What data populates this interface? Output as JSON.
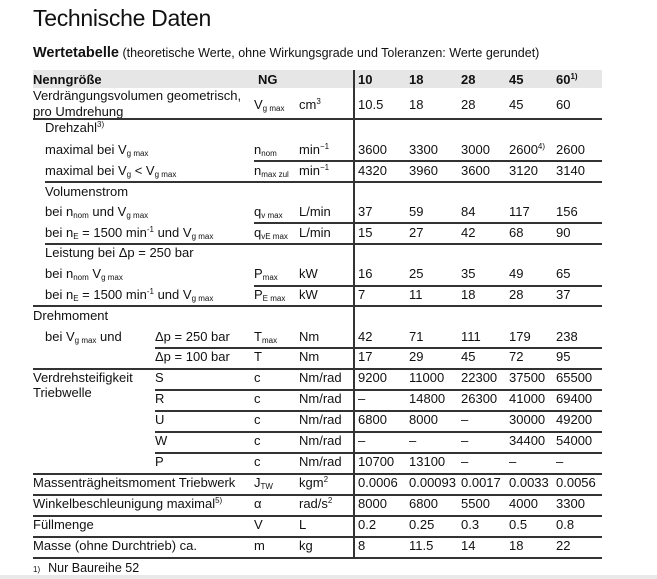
{
  "title": "Technische Daten",
  "subtitle": {
    "bold": "Wertetabelle",
    "rest": " (theoretische Werte, ohne Wirkungsgrade und Toleranzen: Werte gerundet)"
  },
  "header": {
    "label": "Nenngröße",
    "symbol": "NG",
    "sizes": [
      "10",
      "18",
      "28",
      "45",
      "60"
    ],
    "size_footnotes": [
      "",
      "",
      "",
      "",
      "1)"
    ]
  },
  "rows": [
    {
      "label": [
        [
          "Verdrängungsvolumen geometrisch,",
          ""
        ]
      ],
      "label2": [
        [
          "pro Umdrehung",
          ""
        ]
      ],
      "symbol": [
        [
          "V",
          ""
        ],
        [
          "g max",
          "sub"
        ]
      ],
      "unit": [
        [
          "cm",
          ""
        ],
        [
          "3",
          "sup"
        ]
      ],
      "values": [
        "10.5",
        "18",
        "28",
        "45",
        "60"
      ]
    },
    {
      "label": [
        [
          "Drehzahl",
          ""
        ],
        [
          "3)",
          "sup"
        ]
      ],
      "symbol": [],
      "unit": [],
      "values": []
    },
    {
      "label": [
        [
          "maximal bei V",
          ""
        ],
        [
          "g max",
          "sub"
        ]
      ],
      "symbol": [
        [
          "n",
          ""
        ],
        [
          "nom",
          "sub"
        ]
      ],
      "unit": [
        [
          "min",
          ""
        ],
        [
          "−1",
          "sup"
        ]
      ],
      "values": [
        "3600",
        "3300",
        "3000",
        "2600|4)",
        "2600"
      ]
    },
    {
      "label": [
        [
          "maximal bei V",
          ""
        ],
        [
          "g",
          "sub"
        ],
        [
          " < V",
          ""
        ],
        [
          "g max",
          "sub"
        ]
      ],
      "symbol": [
        [
          "n",
          ""
        ],
        [
          "max zul",
          "sub"
        ]
      ],
      "unit": [
        [
          "min",
          ""
        ],
        [
          "−1",
          "sup"
        ]
      ],
      "values": [
        "4320",
        "3960",
        "3600",
        "3120",
        "3140"
      ]
    },
    {
      "label": [
        [
          "Volumenstrom",
          ""
        ]
      ],
      "symbol": [],
      "unit": [],
      "values": []
    },
    {
      "label": [
        [
          "bei n",
          ""
        ],
        [
          "nom",
          "sub"
        ],
        [
          " und V",
          ""
        ],
        [
          "g max",
          "sub"
        ]
      ],
      "symbol": [
        [
          "q",
          ""
        ],
        [
          "v max",
          "sub"
        ]
      ],
      "unit": [
        [
          "L/min",
          ""
        ]
      ],
      "values": [
        "37",
        "59",
        "84",
        "117",
        "156"
      ]
    },
    {
      "label": [
        [
          "bei n",
          ""
        ],
        [
          "E",
          "sub"
        ],
        [
          " = 1500 min",
          ""
        ],
        [
          "-1",
          "sup"
        ],
        [
          " und V",
          ""
        ],
        [
          "g max",
          "sub"
        ]
      ],
      "symbol": [
        [
          "q",
          ""
        ],
        [
          "vE max",
          "sub"
        ]
      ],
      "unit": [
        [
          "L/min",
          ""
        ]
      ],
      "values": [
        "15",
        "27",
        "42",
        "68",
        "90"
      ]
    },
    {
      "label": [
        [
          "Leistung  bei Δp = 250 bar",
          ""
        ]
      ],
      "symbol": [],
      "unit": [],
      "values": []
    },
    {
      "label": [
        [
          "bei n",
          ""
        ],
        [
          "nom",
          "sub"
        ],
        [
          "  V",
          ""
        ],
        [
          "g max",
          "sub"
        ]
      ],
      "symbol": [
        [
          "P",
          ""
        ],
        [
          "max",
          "sub"
        ]
      ],
      "unit": [
        [
          "kW",
          ""
        ]
      ],
      "values": [
        "16",
        "25",
        "35",
        "49",
        "65"
      ]
    },
    {
      "label": [
        [
          "bei n",
          ""
        ],
        [
          "E",
          "sub"
        ],
        [
          " = 1500 min",
          ""
        ],
        [
          "-1",
          "sup"
        ],
        [
          " und V",
          ""
        ],
        [
          "g max",
          "sub"
        ]
      ],
      "symbol": [
        [
          "P",
          ""
        ],
        [
          "E max",
          "sub"
        ]
      ],
      "unit": [
        [
          "kW",
          ""
        ]
      ],
      "values": [
        "7",
        "11",
        "18",
        "28",
        "37"
      ]
    },
    {
      "label": [
        [
          "Drehmoment",
          ""
        ]
      ],
      "symbol": [],
      "unit": [],
      "values": []
    },
    {
      "label": [
        [
          "bei V",
          ""
        ],
        [
          "g max",
          "sub"
        ],
        [
          " und",
          ""
        ]
      ],
      "sub": [
        [
          "Δp = 250 bar",
          ""
        ]
      ],
      "symbol": [
        [
          "T",
          ""
        ],
        [
          "max",
          "sub"
        ]
      ],
      "unit": [
        [
          "Nm",
          ""
        ]
      ],
      "values": [
        "42",
        "71",
        "111",
        "179",
        "238"
      ]
    },
    {
      "label": [],
      "sub": [
        [
          "Δp = 100 bar",
          ""
        ]
      ],
      "symbol": [
        [
          "T",
          ""
        ]
      ],
      "unit": [
        [
          "Nm",
          ""
        ]
      ],
      "values": [
        "17",
        "29",
        "45",
        "72",
        "95"
      ]
    },
    {
      "label": [
        [
          "Verdrehsteifigkeit",
          ""
        ]
      ],
      "label2": [
        [
          "Triebwelle",
          ""
        ]
      ],
      "sub": [
        [
          "S",
          ""
        ]
      ],
      "symbol": [
        [
          "c",
          ""
        ]
      ],
      "unit": [
        [
          "Nm/rad",
          ""
        ]
      ],
      "values": [
        "9200",
        "11000",
        "22300",
        "37500",
        "65500"
      ]
    },
    {
      "label": [],
      "sub": [
        [
          "R",
          ""
        ]
      ],
      "symbol": [
        [
          "c",
          ""
        ]
      ],
      "unit": [
        [
          "Nm/rad",
          ""
        ]
      ],
      "values": [
        "–",
        "14800",
        "26300",
        "41000",
        "69400"
      ]
    },
    {
      "label": [],
      "sub": [
        [
          "U",
          ""
        ]
      ],
      "symbol": [
        [
          "c",
          ""
        ]
      ],
      "unit": [
        [
          "Nm/rad",
          ""
        ]
      ],
      "values": [
        "6800",
        "8000",
        "–",
        "30000",
        "49200"
      ]
    },
    {
      "label": [],
      "sub": [
        [
          "W",
          ""
        ]
      ],
      "symbol": [
        [
          "c",
          ""
        ]
      ],
      "unit": [
        [
          "Nm/rad",
          ""
        ]
      ],
      "values": [
        "–",
        "–",
        "–",
        "34400",
        "54000"
      ]
    },
    {
      "label": [],
      "sub": [
        [
          "P",
          ""
        ]
      ],
      "symbol": [
        [
          "c",
          ""
        ]
      ],
      "unit": [
        [
          "Nm/rad",
          ""
        ]
      ],
      "values": [
        "10700",
        "13100",
        "–",
        "–",
        "–"
      ]
    },
    {
      "label": [
        [
          "Massenträgheitsmoment Triebwerk",
          ""
        ]
      ],
      "symbol": [
        [
          "J",
          ""
        ],
        [
          "TW",
          "sub"
        ]
      ],
      "unit": [
        [
          "kgm",
          ""
        ],
        [
          "2",
          "sup"
        ]
      ],
      "values": [
        "0.0006",
        "0.00093",
        "0.0017",
        "0.0033",
        "0.0056"
      ]
    },
    {
      "label": [
        [
          "Winkelbeschleunigung maximal",
          ""
        ],
        [
          "5)",
          "sup"
        ]
      ],
      "symbol": [
        [
          "α",
          ""
        ]
      ],
      "unit": [
        [
          "rad/s",
          ""
        ],
        [
          "2",
          "sup"
        ]
      ],
      "values": [
        "8000",
        "6800",
        "5500",
        "4000",
        "3300"
      ]
    },
    {
      "label": [
        [
          "Füllmenge",
          ""
        ]
      ],
      "symbol": [
        [
          "V",
          ""
        ]
      ],
      "unit": [
        [
          "L",
          ""
        ]
      ],
      "values": [
        "0.2",
        "0.25",
        "0.3",
        "0.5",
        "0.8"
      ]
    },
    {
      "label": [
        [
          "Masse (ohne Durchtrieb) ca.",
          ""
        ]
      ],
      "symbol": [
        [
          "m",
          ""
        ]
      ],
      "unit": [
        [
          "kg",
          ""
        ]
      ],
      "values": [
        "8",
        "11.5",
        "14",
        "18",
        "22"
      ]
    }
  ],
  "footnote": {
    "mark": "1)",
    "text": "Nur Baureihe 52"
  }
}
